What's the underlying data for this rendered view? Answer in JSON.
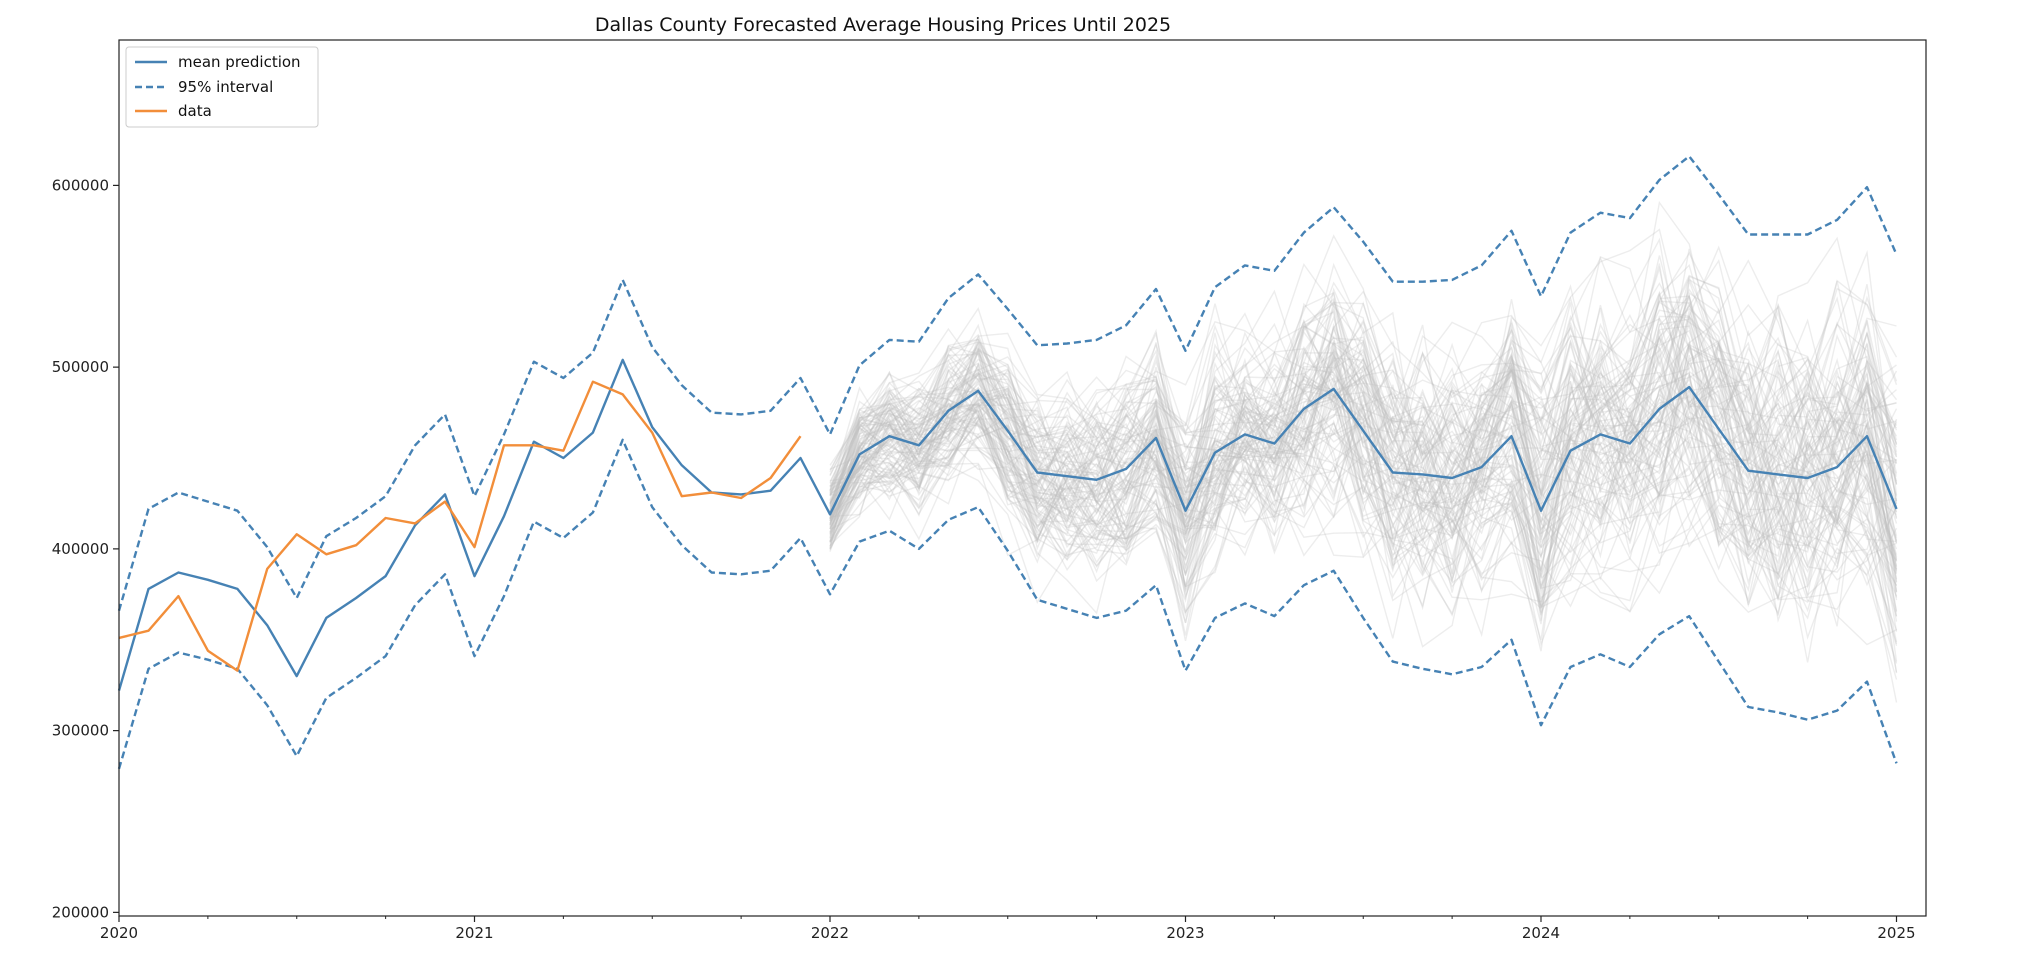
{
  "chart_data": {
    "type": "line",
    "title": "Dallas County Forecasted Average Housing Prices Until 2025",
    "xlabel": "",
    "ylabel": "",
    "x_tick_labels": [
      "2020",
      "2021",
      "2022",
      "2023",
      "2024",
      "2025"
    ],
    "y_tick_labels": [
      "200000",
      "300000",
      "400000",
      "500000",
      "600000"
    ],
    "xlim": [
      2020.0,
      2025.083
    ],
    "ylim": [
      198000,
      680000
    ],
    "grid": false,
    "legend_position": "top-left",
    "colors": {
      "mean": "#4682b4",
      "data": "#f28e3a",
      "samples": "#bdbdbd"
    },
    "legend": [
      {
        "label": "mean prediction",
        "style": "solid",
        "color": "#4682b4"
      },
      {
        "label": "95% interval",
        "style": "dashed",
        "color": "#4682b4"
      },
      {
        "label": "data",
        "style": "solid",
        "color": "#f28e3a"
      }
    ],
    "series": [
      {
        "name": "mean prediction",
        "style": "solid",
        "x": [
          2020.0,
          2020.083,
          2020.167,
          2020.25,
          2020.333,
          2020.417,
          2020.5,
          2020.583,
          2020.667,
          2020.75,
          2020.833,
          2020.917,
          2021.0,
          2021.083,
          2021.167,
          2021.25,
          2021.333,
          2021.417,
          2021.5,
          2021.583,
          2021.667,
          2021.75,
          2021.833,
          2021.917,
          2022.0,
          2022.083,
          2022.167,
          2022.25,
          2022.333,
          2022.417,
          2022.5,
          2022.583,
          2022.667,
          2022.75,
          2022.833,
          2022.917,
          2023.0,
          2023.083,
          2023.167,
          2023.25,
          2023.333,
          2023.417,
          2023.5,
          2023.583,
          2023.667,
          2023.75,
          2023.833,
          2023.917,
          2024.0,
          2024.083,
          2024.167,
          2024.25,
          2024.333,
          2024.417,
          2024.5,
          2024.583,
          2024.667,
          2024.75,
          2024.833,
          2024.917,
          2025.0
        ],
        "y": [
          322000,
          378000,
          387000,
          383000,
          378000,
          358000,
          330000,
          362000,
          373000,
          385000,
          413000,
          430000,
          385000,
          418000,
          459000,
          450000,
          464000,
          504000,
          467000,
          446000,
          431000,
          430000,
          432000,
          450000,
          419000,
          452000,
          462000,
          457000,
          476000,
          487000,
          465000,
          442000,
          440000,
          438000,
          444000,
          461000,
          421000,
          453000,
          463000,
          458000,
          477000,
          488000,
          465000,
          442000,
          441000,
          439000,
          445000,
          462000,
          421000,
          454000,
          463000,
          458000,
          477000,
          489000,
          466000,
          443000,
          441000,
          439000,
          445000,
          462000,
          422000
        ]
      },
      {
        "name": "95% interval",
        "style": "dashed",
        "x": [
          2020.0,
          2020.083,
          2020.167,
          2020.25,
          2020.333,
          2020.417,
          2020.5,
          2020.583,
          2020.667,
          2020.75,
          2020.833,
          2020.917,
          2021.0,
          2021.083,
          2021.167,
          2021.25,
          2021.333,
          2021.417,
          2021.5,
          2021.583,
          2021.667,
          2021.75,
          2021.833,
          2021.917,
          2022.0,
          2022.083,
          2022.167,
          2022.25,
          2022.333,
          2022.417,
          2022.5,
          2022.583,
          2022.667,
          2022.75,
          2022.833,
          2022.917,
          2023.0,
          2023.083,
          2023.167,
          2023.25,
          2023.333,
          2023.417,
          2023.5,
          2023.583,
          2023.667,
          2023.75,
          2023.833,
          2023.917,
          2024.0,
          2024.083,
          2024.167,
          2024.25,
          2024.333,
          2024.417,
          2024.5,
          2024.583,
          2024.667,
          2024.75,
          2024.833,
          2024.917,
          2025.0
        ],
        "y": [
          366000,
          422000,
          431000,
          426000,
          421000,
          401000,
          373000,
          407000,
          417000,
          429000,
          457000,
          474000,
          429000,
          463000,
          503000,
          494000,
          508000,
          548000,
          511000,
          490000,
          475000,
          474000,
          476000,
          494000,
          463000,
          501000,
          515000,
          514000,
          538000,
          551000,
          532000,
          512000,
          513000,
          515000,
          523000,
          543000,
          509000,
          544000,
          556000,
          553000,
          574000,
          588000,
          569000,
          547000,
          547000,
          548000,
          556000,
          575000,
          539000,
          574000,
          585000,
          582000,
          603000,
          616000,
          595000,
          573000,
          573000,
          573000,
          581000,
          599000,
          562000
        ]
      },
      {
        "name": "95% interval",
        "style": "dashed",
        "x": [
          2020.0,
          2020.083,
          2020.167,
          2020.25,
          2020.333,
          2020.417,
          2020.5,
          2020.583,
          2020.667,
          2020.75,
          2020.833,
          2020.917,
          2021.0,
          2021.083,
          2021.167,
          2021.25,
          2021.333,
          2021.417,
          2021.5,
          2021.583,
          2021.667,
          2021.75,
          2021.833,
          2021.917,
          2022.0,
          2022.083,
          2022.167,
          2022.25,
          2022.333,
          2022.417,
          2022.5,
          2022.583,
          2022.667,
          2022.75,
          2022.833,
          2022.917,
          2023.0,
          2023.083,
          2023.167,
          2023.25,
          2023.333,
          2023.417,
          2023.5,
          2023.583,
          2023.667,
          2023.75,
          2023.833,
          2023.917,
          2024.0,
          2024.083,
          2024.167,
          2024.25,
          2024.333,
          2024.417,
          2024.5,
          2024.583,
          2024.667,
          2024.75,
          2024.833,
          2024.917,
          2025.0
        ],
        "y": [
          279000,
          334000,
          343000,
          339000,
          334000,
          314000,
          286000,
          318000,
          329000,
          341000,
          369000,
          386000,
          341000,
          374000,
          415000,
          406000,
          420000,
          460000,
          423000,
          402000,
          387000,
          386000,
          388000,
          406000,
          375000,
          404000,
          410000,
          400000,
          416000,
          423000,
          399000,
          372000,
          367000,
          362000,
          366000,
          380000,
          333000,
          362000,
          370000,
          363000,
          380000,
          388000,
          362000,
          338000,
          334000,
          331000,
          335000,
          350000,
          303000,
          335000,
          342000,
          335000,
          353000,
          363000,
          338000,
          313000,
          310000,
          306000,
          311000,
          327000,
          282000
        ]
      },
      {
        "name": "data",
        "style": "solid",
        "x": [
          2020.0,
          2020.083,
          2020.167,
          2020.25,
          2020.333,
          2020.417,
          2020.5,
          2020.583,
          2020.667,
          2020.75,
          2020.833,
          2020.917,
          2021.0,
          2021.083,
          2021.167,
          2021.25,
          2021.333,
          2021.417,
          2021.5,
          2021.583,
          2021.667,
          2021.75,
          2021.833,
          2021.917
        ],
        "y": [
          351000,
          355000,
          374000,
          344000,
          333000,
          389000,
          408000,
          397000,
          402000,
          417000,
          414000,
          426000,
          401000,
          457000,
          457000,
          454000,
          492000,
          485000,
          464000,
          429000,
          431000,
          428000,
          439000,
          462000
        ]
      }
    ]
  }
}
